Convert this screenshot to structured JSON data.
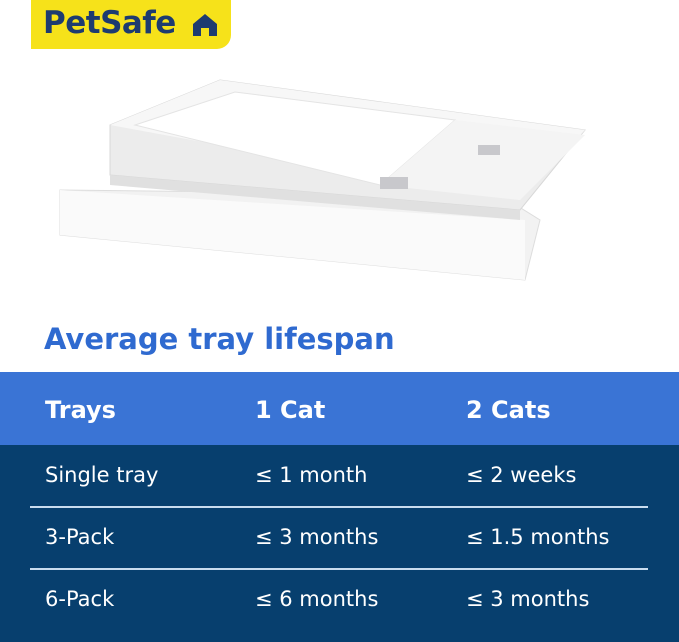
{
  "brand": {
    "logo_text": "PetSafe",
    "logo_color": "#f6e21a",
    "logo_text_color": "#1d3b70"
  },
  "heading": "Average tray lifespan",
  "table": {
    "headers": [
      "Trays",
      "1 Cat",
      "2 Cats"
    ],
    "rows": [
      [
        "Single tray",
        "≤ 1 month",
        "≤ 2 weeks"
      ],
      [
        "3-Pack",
        "≤ 3 months",
        "≤ 1.5 months"
      ],
      [
        "6-Pack",
        "≤ 6 months",
        "≤ 3 months"
      ]
    ],
    "header_color": "#3a74d5",
    "body_color": "#073f6e"
  }
}
